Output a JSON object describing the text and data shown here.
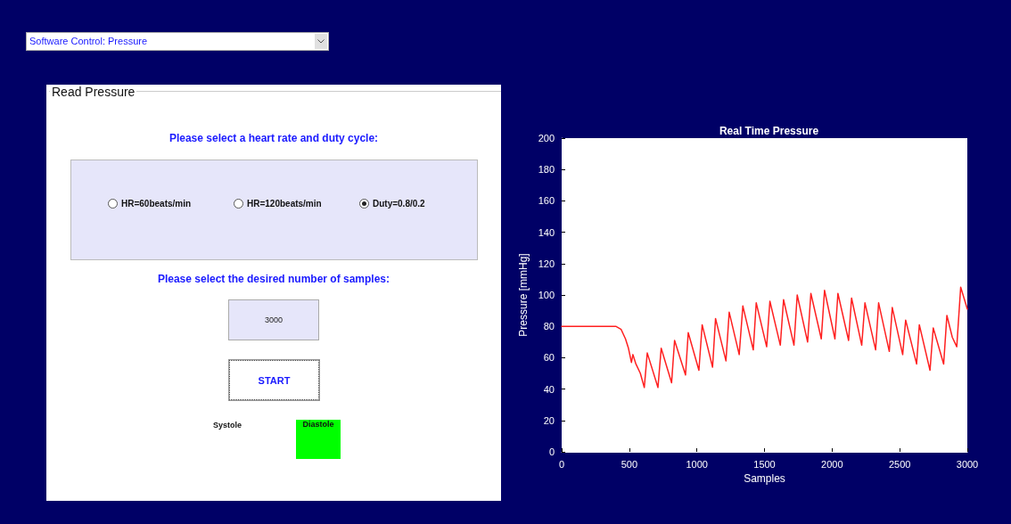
{
  "chart_data": [
    {
      "type": "other",
      "title": "Read Pressure",
      "annotations": [
        "Software Control: Pressure",
        "Please select a heart rate and duty cycle:",
        "HR=60beats/min",
        "HR=120beats/min",
        "Duty=0.8/0.2",
        "Please select the desired number of samples:",
        "3000",
        "START",
        "Systole",
        "Diastole"
      ]
    },
    {
      "type": "line",
      "title": "Real Time Pressure",
      "xlabel": "Samples",
      "ylabel": "Pressure [mmHg]",
      "color": "#ff2020",
      "marker": "none",
      "grid": false,
      "x": [
        0,
        400,
        440,
        472,
        494,
        516,
        527,
        549,
        582,
        611,
        633,
        712,
        736,
        813,
        835,
        916,
        936,
        1015,
        1039,
        1116,
        1138,
        1215,
        1239,
        1313,
        1340,
        1417,
        1439,
        1516,
        1540,
        1617,
        1641,
        1718,
        1742,
        1819,
        1843,
        1920,
        1944,
        2021,
        2043,
        2122,
        2144,
        2219,
        2243,
        2322,
        2344,
        2423,
        2445,
        2522,
        2544,
        2625,
        2645,
        2724,
        2748,
        2825,
        2849,
        2889,
        2922,
        2951,
        3000
      ],
      "values": [
        80,
        80,
        78,
        72,
        66,
        57,
        62,
        56,
        50,
        41,
        63,
        41,
        66,
        44,
        71,
        49,
        76,
        52,
        81,
        54,
        85,
        58,
        89,
        62,
        93,
        65,
        95,
        67,
        96,
        68,
        97,
        68,
        100,
        70,
        101,
        72,
        103,
        72,
        101,
        71,
        98,
        68,
        95,
        65,
        95,
        64,
        92,
        62,
        84,
        56,
        81,
        52,
        79,
        56,
        87,
        73,
        67,
        105,
        91
      ],
      "xlim": [
        0,
        3000
      ],
      "xticks": [
        0,
        500,
        1000,
        1500,
        2000,
        2500,
        3000
      ],
      "ylim": [
        0,
        200
      ],
      "yticks": [
        0,
        20,
        40,
        60,
        80,
        100,
        120,
        140,
        160,
        180,
        200
      ]
    }
  ]
}
